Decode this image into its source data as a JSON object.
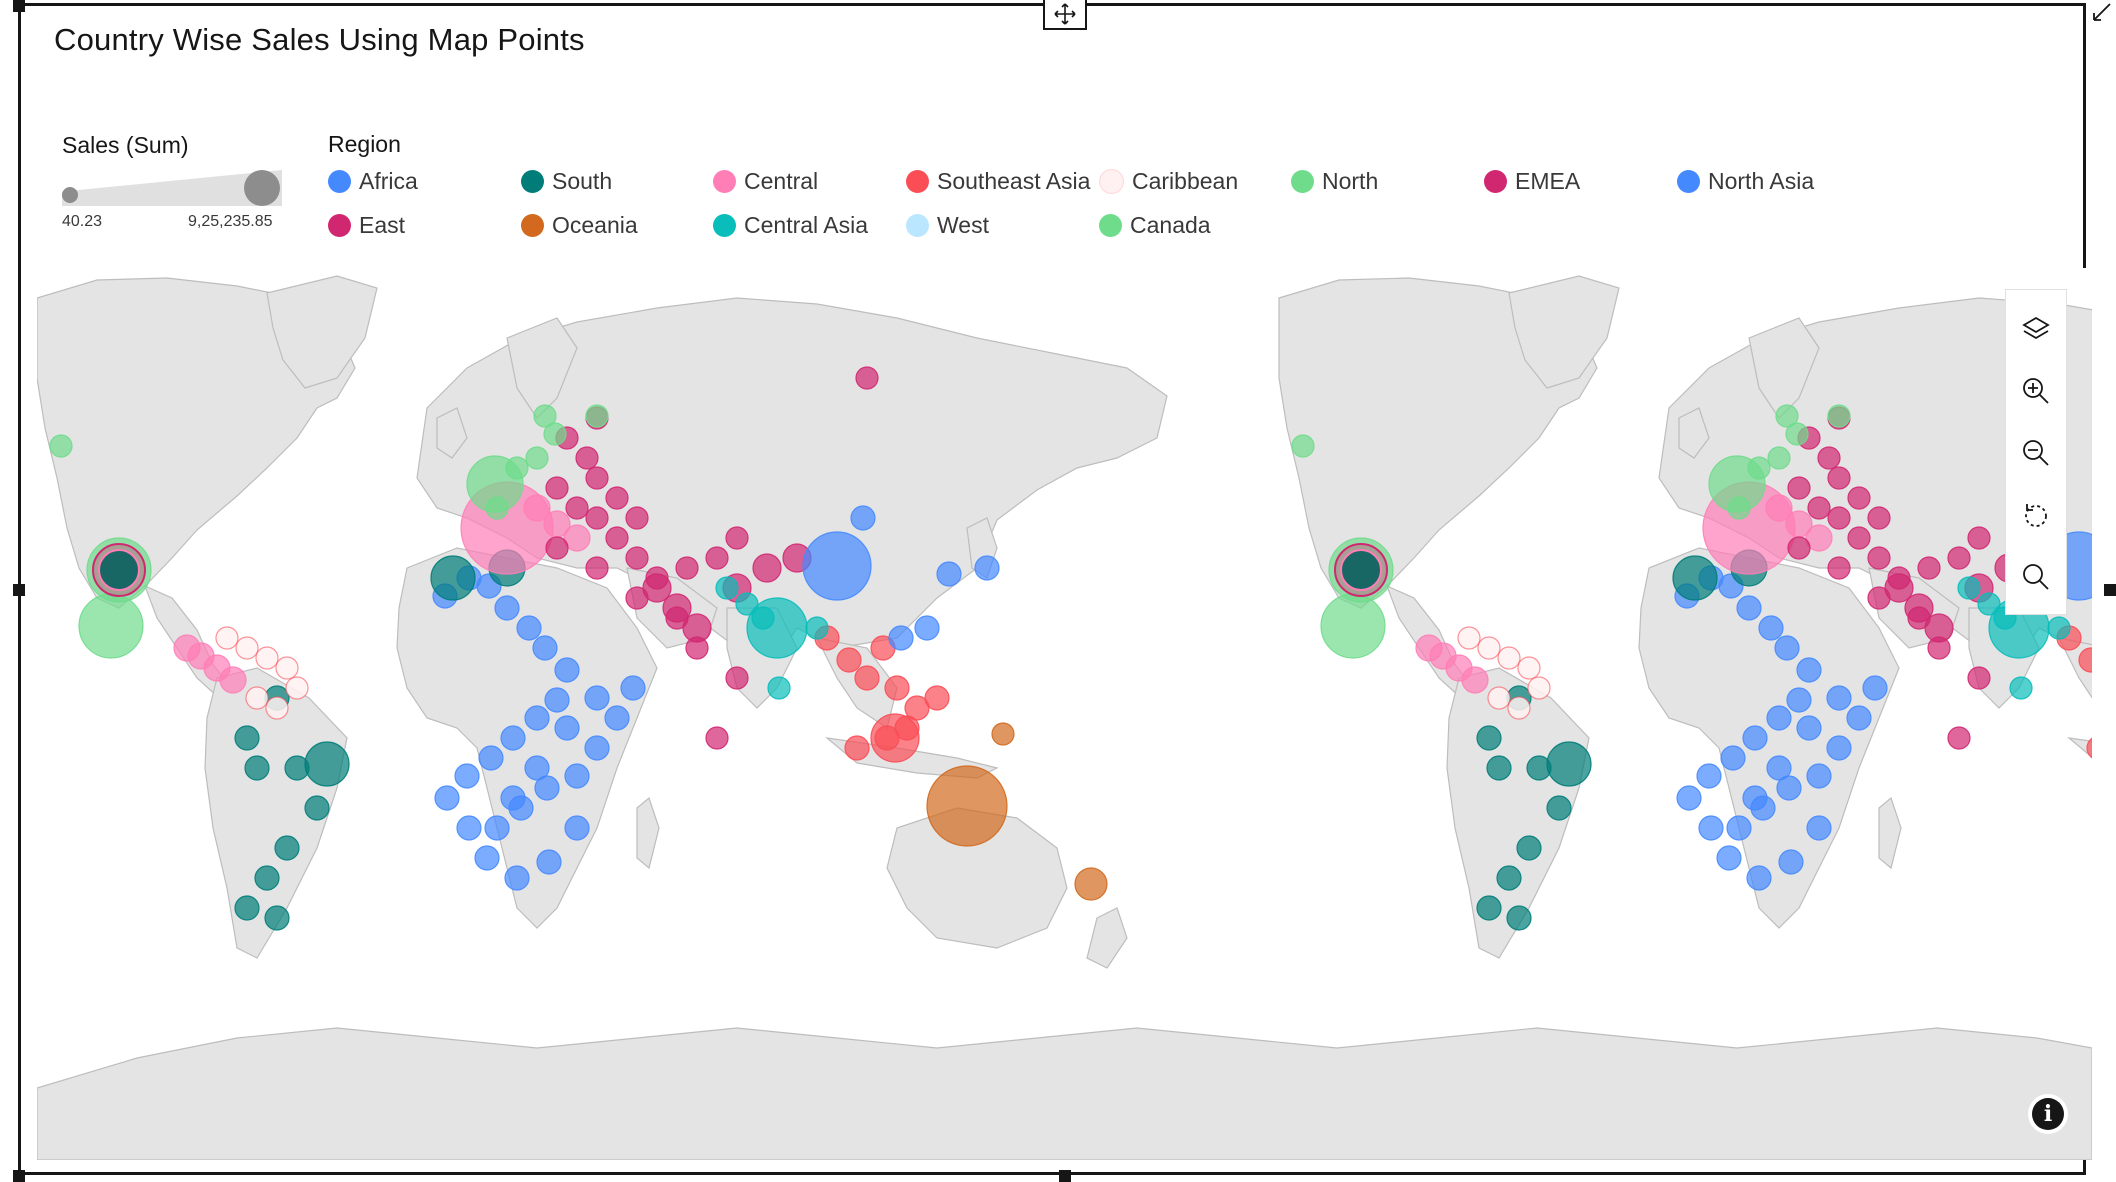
{
  "title": "Country Wise Sales Using Map Points",
  "size_legend": {
    "title": "Sales (Sum)",
    "min": "40.23",
    "max": "9,25,235.85"
  },
  "region_legend": {
    "title": "Region",
    "items": [
      {
        "label": "Africa",
        "color": "#4589ff"
      },
      {
        "label": "South",
        "color": "#007d79"
      },
      {
        "label": "Central",
        "color": "#ff7eb6"
      },
      {
        "label": "Southeast Asia",
        "color": "#fa4d56"
      },
      {
        "label": "Caribbean",
        "color": "#fff1f1"
      },
      {
        "label": "North",
        "color": "#6fdc8c"
      },
      {
        "label": "EMEA",
        "color": "#d12771"
      },
      {
        "label": "North Asia",
        "color": "#4589ff"
      },
      {
        "label": "East",
        "color": "#d12771"
      },
      {
        "label": "Oceania",
        "color": "#d2691e"
      },
      {
        "label": "Central Asia",
        "color": "#08bdba"
      },
      {
        "label": "West",
        "color": "#bae6ff"
      },
      {
        "label": "Canada",
        "color": "#6fdc8c"
      }
    ]
  },
  "toolbar": {
    "buttons": [
      {
        "name": "layers-button",
        "icon": "layers-icon"
      },
      {
        "name": "zoom-in-button",
        "icon": "zoom-in-icon"
      },
      {
        "name": "zoom-out-button",
        "icon": "zoom-out-icon"
      },
      {
        "name": "reset-view-button",
        "icon": "reset-icon"
      },
      {
        "name": "search-button",
        "icon": "search-icon"
      }
    ]
  },
  "info_button": {
    "icon": "info-icon",
    "glyph": "i"
  },
  "map_style": {
    "land": "#e4e4e4",
    "coast": "#bdbdbd",
    "ocean": "#ffffff"
  }
}
